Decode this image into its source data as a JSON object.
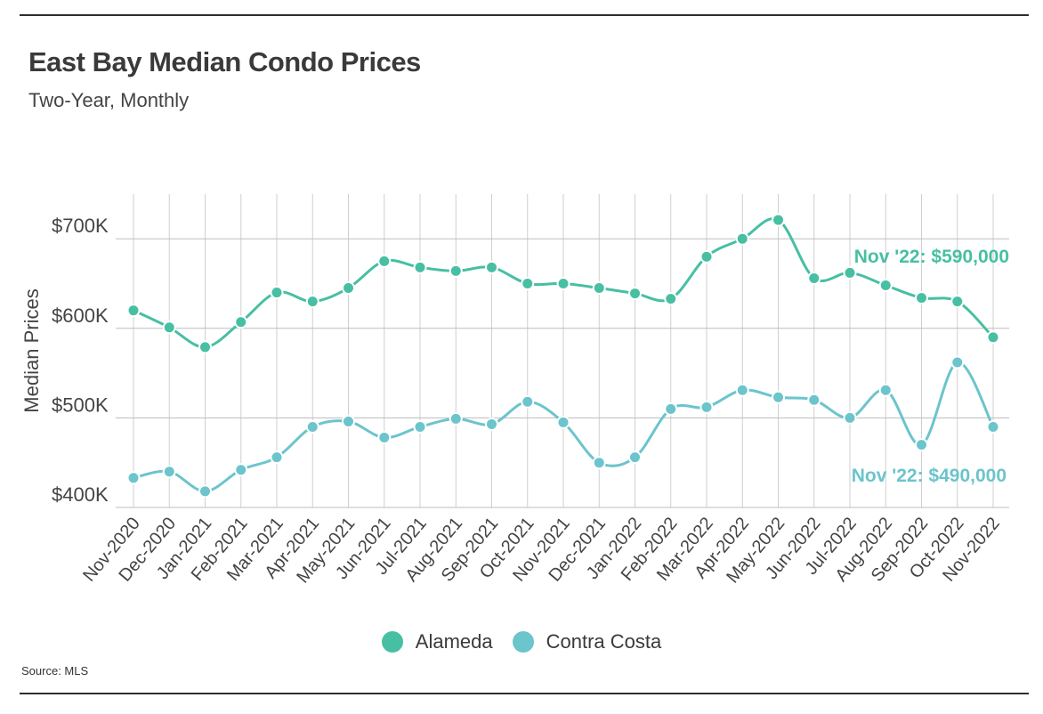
{
  "title": "East Bay Median Condo Prices",
  "subtitle": "Two-Year, Monthly",
  "source": "Source:  MLS",
  "chart_data": {
    "type": "line",
    "title": "East Bay Median Condo Prices",
    "subtitle": "Two-Year, Monthly",
    "xlabel": "",
    "ylabel": "Median Prices",
    "ylim": [
      385000,
      750000
    ],
    "yticks": [
      400000,
      500000,
      600000,
      700000
    ],
    "ytick_labels": [
      "$400K",
      "$500K",
      "$600K",
      "$700K"
    ],
    "grid": true,
    "legend_position": "bottom-center",
    "categories": [
      "Nov-2020",
      "Dec-2020",
      "Jan-2021",
      "Feb-2021",
      "Mar-2021",
      "Apr-2021",
      "May-2021",
      "Jun-2021",
      "Jul-2021",
      "Aug-2021",
      "Sep-2021",
      "Oct-2021",
      "Nov-2021",
      "Dec-2021",
      "Jan-2022",
      "Feb-2022",
      "Mar-2022",
      "Apr-2022",
      "May-2022",
      "Jun-2022",
      "Jul-2022",
      "Aug-2022",
      "Sep-2022",
      "Oct-2022",
      "Nov-2022"
    ],
    "series": [
      {
        "name": "Alameda",
        "color": "#47bfa3",
        "values": [
          620000,
          601000,
          579000,
          607000,
          640000,
          630000,
          645000,
          675000,
          668000,
          664000,
          668000,
          650000,
          650000,
          645000,
          639000,
          633000,
          680000,
          700000,
          721000,
          656000,
          662000,
          648000,
          634000,
          630000,
          590000
        ],
        "end_label": "Nov '22: $590,000"
      },
      {
        "name": "Contra Costa",
        "color": "#6cc4cc",
        "values": [
          433000,
          440000,
          418000,
          442000,
          456000,
          490000,
          496000,
          478000,
          490000,
          499000,
          493000,
          518000,
          495000,
          450000,
          456000,
          510000,
          512000,
          531000,
          523000,
          520000,
          500000,
          531000,
          470000,
          562000,
          490000
        ],
        "end_label": "Nov '22: $490,000"
      }
    ]
  }
}
